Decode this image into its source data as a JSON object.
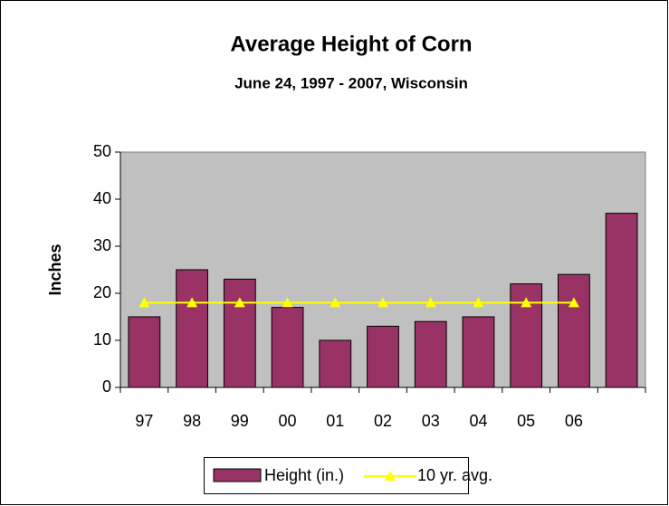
{
  "chart_data": {
    "type": "bar",
    "title": "Average Height of Corn",
    "subtitle": "June 24, 1997 - 2007, Wisconsin",
    "y_label": "Inches",
    "categories": [
      "97",
      "98",
      "99",
      "00",
      "01",
      "02",
      "03",
      "04",
      "05",
      "06",
      null
    ],
    "series": [
      {
        "name": "Height (in.)",
        "type": "bar",
        "color": "#993366",
        "values": [
          15,
          25,
          23,
          17,
          10,
          13,
          14,
          15,
          22,
          24,
          37
        ]
      },
      {
        "name": "10 yr. avg.",
        "type": "line",
        "color": "#ffff00",
        "values": [
          18,
          18,
          18,
          18,
          18,
          18,
          18,
          18,
          18,
          18,
          null
        ]
      }
    ],
    "ylim": [
      0,
      50
    ],
    "yticks": [
      0,
      10,
      20,
      30,
      40,
      50
    ],
    "plot_background": "#c0c0c0",
    "legend": "bottom"
  }
}
